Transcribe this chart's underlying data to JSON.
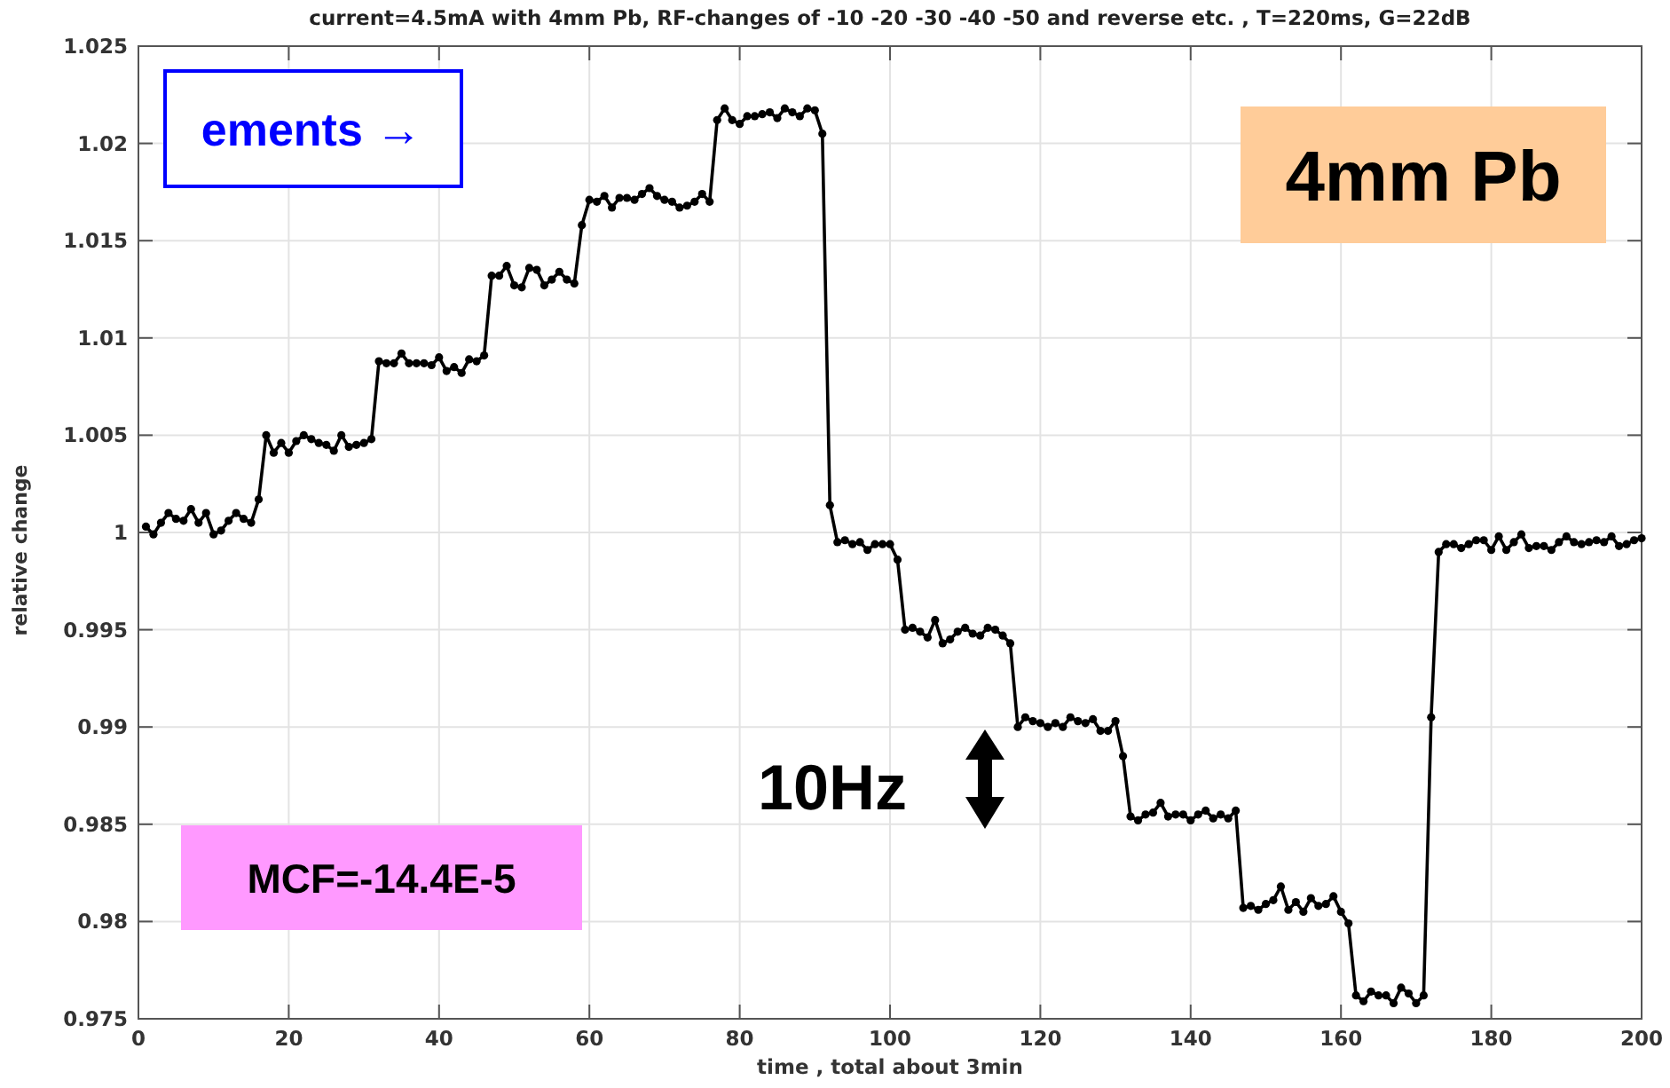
{
  "chart_data": {
    "type": "line",
    "title": "current=4.5mA with 4mm Pb, RF-changes of -10 -20 -30 -40 -50 and reverse etc. , T=220ms, G=22dB",
    "xlabel": "time , total about 3min",
    "ylabel": "relative change",
    "xlim": [
      0,
      200
    ],
    "xticks": [
      0,
      20,
      40,
      60,
      80,
      100,
      120,
      140,
      160,
      180,
      200
    ],
    "ylim": [
      0.975,
      1.025
    ],
    "yticks": [
      0.975,
      0.98,
      0.985,
      0.99,
      0.995,
      1,
      1.005,
      1.01,
      1.015,
      1.02,
      1.025
    ],
    "grid": true,
    "marker": "circle",
    "line_style": "solid",
    "annotations": [
      "4mm Pb",
      "MCF=-14.4E-5",
      "10Hz",
      "ements →"
    ],
    "x": [
      1,
      2,
      3,
      4,
      5,
      6,
      7,
      8,
      9,
      10,
      11,
      12,
      13,
      14,
      15,
      16,
      17,
      18,
      19,
      20,
      21,
      22,
      23,
      24,
      25,
      26,
      27,
      28,
      29,
      30,
      31,
      32,
      33,
      34,
      35,
      36,
      37,
      38,
      39,
      40,
      41,
      42,
      43,
      44,
      45,
      46,
      47,
      48,
      49,
      50,
      51,
      52,
      53,
      54,
      55,
      56,
      57,
      58,
      59,
      60,
      61,
      62,
      63,
      64,
      65,
      66,
      67,
      68,
      69,
      70,
      71,
      72,
      73,
      74,
      75,
      76,
      77,
      78,
      79,
      80,
      81,
      82,
      83,
      84,
      85,
      86,
      87,
      88,
      89,
      90,
      91,
      92,
      93,
      94,
      95,
      96,
      97,
      98,
      99,
      100,
      101,
      102,
      103,
      104,
      105,
      106,
      107,
      108,
      109,
      110,
      111,
      112,
      113,
      114,
      115,
      116,
      117,
      118,
      119,
      120,
      121,
      122,
      123,
      124,
      125,
      126,
      127,
      128,
      129,
      130,
      131,
      132,
      133,
      134,
      135,
      136,
      137,
      138,
      139,
      140,
      141,
      142,
      143,
      144,
      145,
      146,
      147,
      148,
      149,
      150,
      151,
      152,
      153,
      154,
      155,
      156,
      157,
      158,
      159,
      160,
      161,
      162,
      163,
      164,
      165,
      166,
      167,
      168,
      169,
      170,
      171,
      172,
      173,
      174,
      175,
      176,
      177,
      178,
      179,
      180,
      181,
      182,
      183,
      184,
      185,
      186,
      187,
      188,
      189,
      190,
      191,
      192,
      193,
      194,
      195,
      196,
      197,
      198,
      199,
      200
    ],
    "series": [
      {
        "color": "#000000",
        "values": [
          1.0003,
          0.9999,
          1.0005,
          1.001,
          1.0007,
          1.0006,
          1.0012,
          1.0005,
          1.001,
          0.9999,
          1.0001,
          1.0006,
          1.001,
          1.0007,
          1.0005,
          1.0017,
          1.005,
          1.0041,
          1.0046,
          1.0041,
          1.0047,
          1.005,
          1.0048,
          1.0046,
          1.0045,
          1.0042,
          1.005,
          1.0044,
          1.0045,
          1.0046,
          1.0048,
          1.0088,
          1.0087,
          1.0087,
          1.0092,
          1.0087,
          1.0087,
          1.0087,
          1.0086,
          1.009,
          1.0083,
          1.0085,
          1.0082,
          1.0089,
          1.0088,
          1.0091,
          1.0132,
          1.0132,
          1.0137,
          1.0127,
          1.0126,
          1.0136,
          1.0135,
          1.0127,
          1.013,
          1.0134,
          1.013,
          1.0128,
          1.0158,
          1.0171,
          1.017,
          1.0173,
          1.0167,
          1.0172,
          1.0172,
          1.0171,
          1.0174,
          1.0177,
          1.0173,
          1.0171,
          1.017,
          1.0167,
          1.0168,
          1.017,
          1.0174,
          1.017,
          1.0212,
          1.0218,
          1.0212,
          1.021,
          1.0214,
          1.0214,
          1.0215,
          1.0216,
          1.0213,
          1.0218,
          1.0216,
          1.0214,
          1.0218,
          1.0217,
          1.0205,
          1.0014,
          0.9995,
          0.9996,
          0.9994,
          0.9995,
          0.9991,
          0.9994,
          0.9994,
          0.9994,
          0.9986,
          0.995,
          0.9951,
          0.9949,
          0.9946,
          0.9955,
          0.9943,
          0.9945,
          0.9949,
          0.9951,
          0.9948,
          0.9947,
          0.9951,
          0.995,
          0.9947,
          0.9943,
          0.99,
          0.9905,
          0.9903,
          0.9902,
          0.99,
          0.9902,
          0.99,
          0.9905,
          0.9903,
          0.9902,
          0.9904,
          0.9898,
          0.9898,
          0.9903,
          0.9885,
          0.9854,
          0.9852,
          0.9855,
          0.9856,
          0.9861,
          0.9854,
          0.9855,
          0.9855,
          0.9852,
          0.9855,
          0.9857,
          0.9853,
          0.9855,
          0.9853,
          0.9857,
          0.9807,
          0.9808,
          0.9806,
          0.9809,
          0.9811,
          0.9818,
          0.9806,
          0.981,
          0.9805,
          0.9812,
          0.9808,
          0.9809,
          0.9813,
          0.9805,
          0.9799,
          0.9762,
          0.9759,
          0.9764,
          0.9762,
          0.9762,
          0.9758,
          0.9766,
          0.9763,
          0.9758,
          0.9762,
          0.9905,
          0.999,
          0.9994,
          0.9994,
          0.9992,
          0.9994,
          0.9996,
          0.9996,
          0.9991,
          0.9998,
          0.9991,
          0.9995,
          0.9999,
          0.9992,
          0.9993,
          0.9993,
          0.9991,
          0.9995,
          0.9998,
          0.9995,
          0.9994,
          0.9995,
          0.9996,
          0.9995,
          0.9998,
          0.9993,
          0.9994,
          0.9996,
          0.9997
        ]
      }
    ]
  }
}
